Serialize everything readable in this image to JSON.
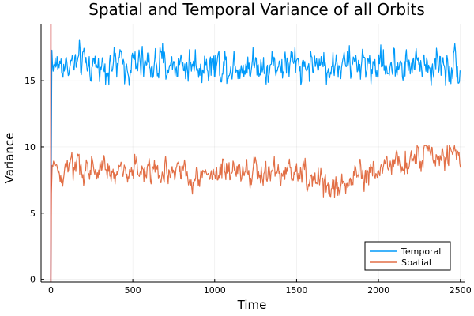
{
  "chart_data": {
    "type": "line",
    "title": "Spatial and Temporal Variance of all Orbits",
    "xlabel": "Time",
    "ylabel": "Variance",
    "xlim": [
      -60,
      2530
    ],
    "ylim": [
      -0.2,
      19.3
    ],
    "xticks": [
      0,
      500,
      1000,
      1500,
      2000,
      2500
    ],
    "yticks": [
      0,
      5,
      10,
      15
    ],
    "grid": true,
    "legend_position": "bottom-right",
    "x_range": [
      0,
      2500
    ],
    "series": [
      {
        "name": "Temporal",
        "color": "#009AFA",
        "initial_rise": [
          [
            0,
            0
          ],
          [
            2,
            8
          ],
          [
            6,
            17.3
          ]
        ],
        "mean": 16.2,
        "amplitude": 2.3,
        "min": 13.3,
        "max": 18.5
      },
      {
        "name": "Spatial",
        "color": "#E26F46",
        "initial_rise": [
          [
            0,
            0
          ],
          [
            3,
            6.5
          ],
          [
            8,
            8.6
          ]
        ],
        "mean_path": [
          [
            0,
            8.3
          ],
          [
            500,
            8.1
          ],
          [
            1000,
            8.0
          ],
          [
            1500,
            8.0
          ],
          [
            1750,
            7.0
          ],
          [
            2000,
            8.4
          ],
          [
            2250,
            9.4
          ],
          [
            2500,
            9.0
          ]
        ],
        "amplitude": 1.9,
        "min": 5.7,
        "max": 10.1
      }
    ],
    "vline": {
      "x": 0,
      "color": "#C71B1B"
    }
  }
}
